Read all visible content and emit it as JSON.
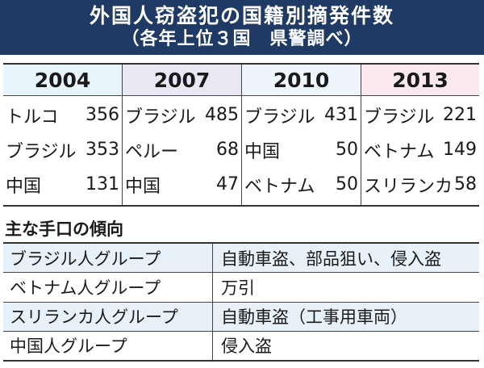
{
  "header": {
    "title": "外国人窃盗犯の国籍別摘発件数",
    "subtitle": "（各年上位３国　県警調べ）"
  },
  "colors": {
    "header_bg": "#1f3a64",
    "year_2004_bg": "#e8f4fb",
    "year_2007_bg": "#e9e7f4",
    "year_2010_bg": "#eef5fb",
    "year_2013_bg": "#fbe9ef",
    "shaded_row_bg": "#e6f1f9"
  },
  "years": [
    {
      "year": "2004",
      "rows": [
        {
          "country": "トルコ",
          "count": "356"
        },
        {
          "country": "ブラジル",
          "count": "353"
        },
        {
          "country": "中国",
          "count": "131"
        }
      ]
    },
    {
      "year": "2007",
      "rows": [
        {
          "country": "ブラジル",
          "count": "485"
        },
        {
          "country": "ペルー",
          "count": "68"
        },
        {
          "country": "中国",
          "count": "47"
        }
      ]
    },
    {
      "year": "2010",
      "rows": [
        {
          "country": "ブラジル",
          "count": "431"
        },
        {
          "country": "中国",
          "count": "50"
        },
        {
          "country": "ベトナム",
          "count": "50"
        }
      ]
    },
    {
      "year": "2013",
      "rows": [
        {
          "country": "ブラジル",
          "count": "221"
        },
        {
          "country": "ベトナム",
          "count": "149"
        },
        {
          "country": "スリランカ",
          "count": "58"
        }
      ]
    }
  ],
  "methods": {
    "title": "主な手口の傾向",
    "rows": [
      {
        "group": "ブラジル人グループ",
        "trend": "自動車盗、部品狙い、侵入盗"
      },
      {
        "group": "ベトナム人グループ",
        "trend": "万引"
      },
      {
        "group": "スリランカ人グループ",
        "trend": "自動車盗（工事用車両）"
      },
      {
        "group": "中国人グループ",
        "trend": "侵入盗"
      }
    ]
  }
}
